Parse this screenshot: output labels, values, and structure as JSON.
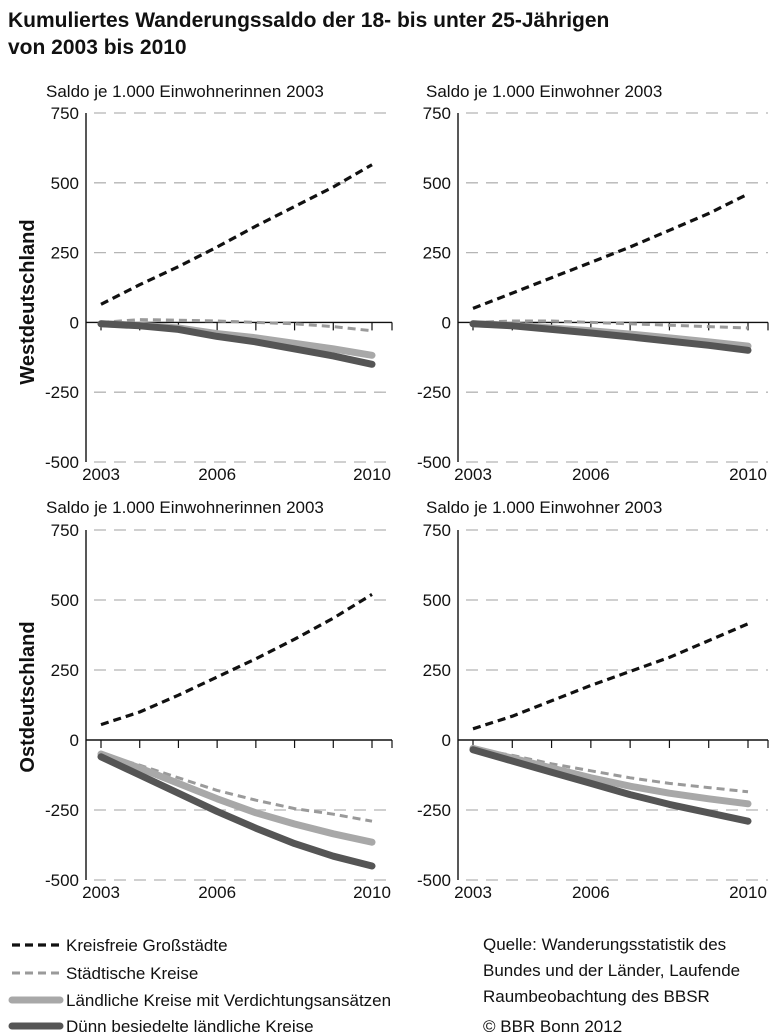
{
  "title_line1": "Kumuliertes Wanderungssaldo der 18- bis unter 25-Jährigen",
  "title_line2": "von 2003 bis 2010",
  "row_labels": [
    "Westdeutschland",
    "Ostdeutschland"
  ],
  "source_lines": [
    "Quelle: Wanderungsstatistik des",
    "Bundes und der Länder, Laufende",
    "Raumbeobachtung des BBSR"
  ],
  "copyright": "© BBR Bonn 2012",
  "colors": {
    "kreisfreie": "#111111",
    "staedtische": "#9a9a9a",
    "laendlich_verdichtung": "#a8a8a8",
    "duenn_besiedelt": "#555555",
    "grid": "#b5b5b5",
    "axis": "#111111"
  },
  "chart_data": [
    {
      "type": "line",
      "panel": "west-female",
      "subtitle": "Saldo je 1.000 Einwohnerinnen 2003",
      "x": [
        2003,
        2004,
        2005,
        2006,
        2007,
        2008,
        2009,
        2010
      ],
      "xticks": [
        "2003",
        "2006",
        "2010"
      ],
      "yticks": [
        "750",
        "500",
        "250",
        "0",
        "-250",
        "-500"
      ],
      "ylim": [
        -500,
        750
      ],
      "grid": true,
      "series": [
        {
          "name": "Kreisfreie Großstädte",
          "values": [
            65,
            135,
            200,
            270,
            345,
            415,
            485,
            565
          ]
        },
        {
          "name": "Städtische Kreise",
          "values": [
            0,
            10,
            8,
            5,
            0,
            -5,
            -15,
            -30
          ]
        },
        {
          "name": "Ländliche Kreise mit Verdichtungsansätzen",
          "values": [
            -5,
            -10,
            -20,
            -40,
            -55,
            -75,
            -95,
            -118
          ]
        },
        {
          "name": "Dünn besiedelte ländliche Kreise",
          "values": [
            -5,
            -12,
            -25,
            -50,
            -70,
            -95,
            -120,
            -150
          ]
        }
      ]
    },
    {
      "type": "line",
      "panel": "west-male",
      "subtitle": "Saldo je 1.000 Einwohner 2003",
      "x": [
        2003,
        2004,
        2005,
        2006,
        2007,
        2008,
        2009,
        2010
      ],
      "xticks": [
        "2003",
        "2006",
        "2010"
      ],
      "yticks": [
        "750",
        "500",
        "250",
        "0",
        "-250",
        "-500"
      ],
      "ylim": [
        -500,
        750
      ],
      "grid": true,
      "series": [
        {
          "name": "Kreisfreie Großstädte",
          "values": [
            50,
            105,
            160,
            215,
            270,
            330,
            390,
            460
          ]
        },
        {
          "name": "Städtische Kreise",
          "values": [
            0,
            5,
            5,
            0,
            -5,
            -10,
            -15,
            -20
          ]
        },
        {
          "name": "Ländliche Kreise mit Verdichtungsansätzen",
          "values": [
            -5,
            -10,
            -20,
            -30,
            -42,
            -55,
            -70,
            -85
          ]
        },
        {
          "name": "Dünn besiedelte ländliche Kreise",
          "values": [
            -5,
            -12,
            -25,
            -38,
            -52,
            -67,
            -82,
            -100
          ]
        }
      ]
    },
    {
      "type": "line",
      "panel": "east-female",
      "subtitle": "Saldo je 1.000 Einwohnerinnen 2003",
      "x": [
        2003,
        2004,
        2005,
        2006,
        2007,
        2008,
        2009,
        2010
      ],
      "xticks": [
        "2003",
        "2006",
        "2010"
      ],
      "yticks": [
        "750",
        "500",
        "250",
        "0",
        "-250",
        "-500"
      ],
      "ylim": [
        -500,
        750
      ],
      "grid": true,
      "series": [
        {
          "name": "Kreisfreie Großstädte",
          "values": [
            55,
            100,
            160,
            225,
            290,
            360,
            435,
            520
          ]
        },
        {
          "name": "Städtische Kreise",
          "values": [
            -50,
            -90,
            -135,
            -180,
            -215,
            -245,
            -265,
            -290
          ]
        },
        {
          "name": "Ländliche Kreise mit Verdichtungsansätzen",
          "values": [
            -50,
            -100,
            -155,
            -210,
            -260,
            -300,
            -335,
            -365
          ]
        },
        {
          "name": "Dünn besiedelte ländliche Kreise",
          "values": [
            -60,
            -125,
            -190,
            -255,
            -315,
            -370,
            -415,
            -450
          ]
        }
      ]
    },
    {
      "type": "line",
      "panel": "east-male",
      "subtitle": "Saldo je 1.000 Einwohner 2003",
      "x": [
        2003,
        2004,
        2005,
        2006,
        2007,
        2008,
        2009,
        2010
      ],
      "xticks": [
        "2003",
        "2006",
        "2010"
      ],
      "yticks": [
        "750",
        "500",
        "250",
        "0",
        "-250",
        "-500"
      ],
      "ylim": [
        -500,
        750
      ],
      "grid": true,
      "series": [
        {
          "name": "Kreisfreie Großstädte",
          "values": [
            40,
            85,
            140,
            195,
            245,
            295,
            355,
            415
          ]
        },
        {
          "name": "Städtische Kreise",
          "values": [
            -30,
            -55,
            -85,
            -110,
            -135,
            -155,
            -170,
            -185
          ]
        },
        {
          "name": "Ländliche Kreise mit Verdichtungsansätzen",
          "values": [
            -30,
            -65,
            -100,
            -135,
            -165,
            -190,
            -210,
            -228
          ]
        },
        {
          "name": "Dünn besiedelte ländliche Kreise",
          "values": [
            -35,
            -75,
            -115,
            -155,
            -195,
            -230,
            -260,
            -290
          ]
        }
      ]
    }
  ],
  "legend": [
    {
      "label": "Kreisfreie Großstädte",
      "style": "dashed-thick-black"
    },
    {
      "label": "Städtische Kreise",
      "style": "dashed-gray"
    },
    {
      "label": "Ländliche Kreise mit Verdichtungsansätzen",
      "style": "solid-light-gray"
    },
    {
      "label": "Dünn besiedelte ländliche Kreise",
      "style": "solid-dark-gray"
    }
  ]
}
